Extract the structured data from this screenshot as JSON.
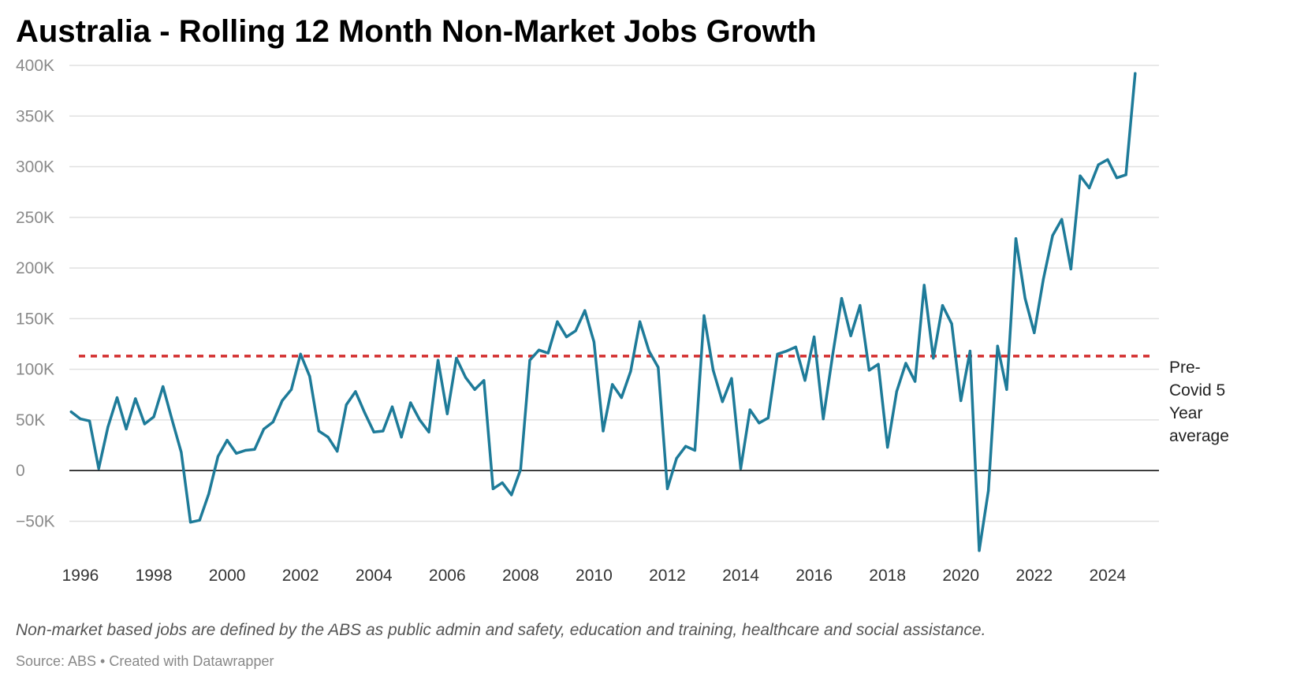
{
  "title": "Australia - Rolling 12 Month Non-Market Jobs Growth",
  "notes": "Non-market based jobs are defined by the ABS as public admin and safety, education and training, healthcare and social assistance.",
  "source": "Source: ABS • Created with Datawrapper",
  "chart_data": {
    "type": "line",
    "title": "Australia - Rolling 12 Month Non-Market Jobs Growth",
    "xlabel": "",
    "ylabel": "",
    "xlim": [
      1995.7,
      2025.4
    ],
    "ylim": [
      -80000,
      400000
    ],
    "y_ticks": [
      -50000,
      0,
      50000,
      100000,
      150000,
      200000,
      250000,
      300000,
      350000,
      400000
    ],
    "y_tick_labels": [
      "−50K",
      "0",
      "50K",
      "100K",
      "150K",
      "200K",
      "250K",
      "300K",
      "350K",
      "400K"
    ],
    "x_ticks": [
      1996,
      1998,
      2000,
      2002,
      2004,
      2006,
      2008,
      2010,
      2012,
      2014,
      2016,
      2018,
      2020,
      2022,
      2024
    ],
    "x_tick_labels": [
      "1996",
      "1998",
      "2000",
      "2002",
      "2004",
      "2006",
      "2008",
      "2010",
      "2012",
      "2014",
      "2016",
      "2018",
      "2020",
      "2022",
      "2024"
    ],
    "grid": true,
    "colors": {
      "line": "#1e7b99",
      "reference": "#d32f2f",
      "zero": "#000000",
      "grid": "#e0e0e0"
    },
    "reference_line": {
      "value": 113000,
      "label_lines": [
        "Pre-",
        "Covid 5",
        "Year",
        "average"
      ]
    },
    "series": [
      {
        "x": [
          1995.75,
          1996.0,
          1996.25,
          1996.5,
          1996.75,
          1997.0,
          1997.25,
          1997.5,
          1997.75,
          1998.0,
          1998.25,
          1998.5,
          1998.75,
          1999.0,
          1999.25,
          1999.5,
          1999.75,
          2000.0,
          2000.25,
          2000.5,
          2000.75,
          2001.0,
          2001.25,
          2001.5,
          2001.75,
          2002.0,
          2002.25,
          2002.5,
          2002.75,
          2003.0,
          2003.25,
          2003.5,
          2003.75,
          2004.0,
          2004.25,
          2004.5,
          2004.75,
          2005.0,
          2005.25,
          2005.5,
          2005.75,
          2006.0,
          2006.25,
          2006.5,
          2006.75,
          2007.0,
          2007.25,
          2007.5,
          2007.75,
          2008.0,
          2008.25,
          2008.5,
          2008.75,
          2009.0,
          2009.25,
          2009.5,
          2009.75,
          2010.0,
          2010.25,
          2010.5,
          2010.75,
          2011.0,
          2011.25,
          2011.5,
          2011.75,
          2012.0,
          2012.25,
          2012.5,
          2012.75,
          2013.0,
          2013.25,
          2013.5,
          2013.75,
          2014.0,
          2014.25,
          2014.5,
          2014.75,
          2015.0,
          2015.25,
          2015.5,
          2015.75,
          2016.0,
          2016.25,
          2016.5,
          2016.75,
          2017.0,
          2017.25,
          2017.5,
          2017.75,
          2018.0,
          2018.25,
          2018.5,
          2018.75,
          2019.0,
          2019.25,
          2019.5,
          2019.75,
          2020.0,
          2020.25,
          2020.5,
          2020.75,
          2021.0,
          2021.25,
          2021.5,
          2021.75,
          2022.0,
          2022.25,
          2022.5,
          2022.75,
          2023.0,
          2023.25,
          2023.5,
          2023.75,
          2024.0,
          2024.25,
          2024.5
        ],
        "y": [
          58000,
          51000,
          49000,
          2000,
          43000,
          72000,
          41000,
          71000,
          46000,
          53000,
          83000,
          50000,
          18000,
          -51000,
          -49000,
          -23000,
          14000,
          30000,
          17000,
          20000,
          21000,
          41000,
          48000,
          69000,
          80000,
          115000,
          93000,
          39000,
          33000,
          19000,
          65000,
          78000,
          57000,
          38000,
          39000,
          63000,
          33000,
          67000,
          50000,
          38000,
          109000,
          56000,
          111000,
          92000,
          80000,
          89000,
          -18000,
          -12000,
          -24000,
          1000,
          109000,
          119000,
          116000,
          147000,
          132000,
          138000,
          158000,
          127000,
          39000,
          85000,
          72000,
          98000,
          147000,
          118000,
          102000,
          -18000,
          12000,
          24000,
          20000,
          153000,
          99000,
          68000,
          91000,
          2000,
          60000,
          47000,
          52000,
          115000,
          118000,
          122000,
          89000,
          132000,
          51000,
          113000,
          170000,
          133000,
          163000,
          99000,
          105000,
          23000,
          78000,
          106000,
          88000,
          183000,
          111000,
          163000,
          145000,
          69000,
          118000,
          -79000,
          -20000,
          123000,
          80000,
          229000,
          170000,
          136000,
          189000,
          232000,
          248000,
          199000,
          291000,
          279000,
          302000,
          307000,
          289000,
          292000
        ]
      },
      {
        "x": [
          2024.75
        ],
        "y": [
          392000
        ]
      }
    ]
  }
}
